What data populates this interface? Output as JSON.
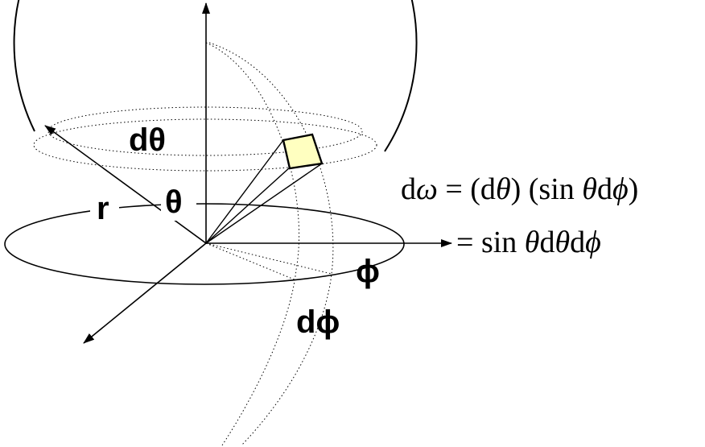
{
  "labels": {
    "d_theta": "dθ",
    "theta": "θ",
    "r": "r",
    "phi": "ϕ",
    "d_phi": "dϕ"
  },
  "equation": {
    "line1": {
      "lhs_d": "d",
      "lhs_omega": "ω",
      "equals": " = ",
      "part1": "(d",
      "theta": "θ",
      "part2": ") (sin ",
      "theta2": "θ",
      "part3": "d",
      "phi": "ϕ",
      "part4": ")"
    },
    "line2": {
      "equals": "= ",
      "sin": "sin ",
      "theta": "θ",
      "d1": "d",
      "theta2": "θ",
      "d2": "d",
      "phi": "ϕ"
    }
  },
  "colors": {
    "stroke": "#000000",
    "patch_fill": "#ffffc0",
    "background": "#ffffff"
  }
}
